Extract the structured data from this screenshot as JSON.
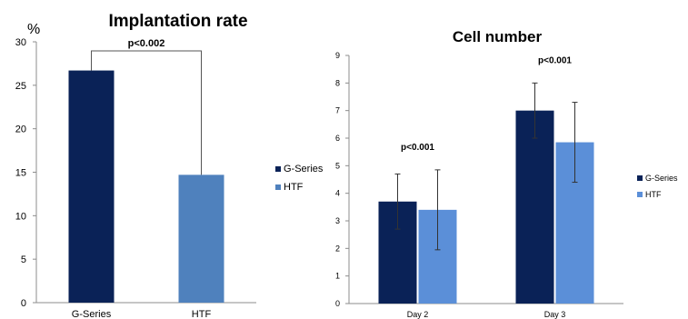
{
  "chart_data": [
    {
      "type": "bar",
      "title": "Implantation rate",
      "ylabel": "%",
      "ylim": [
        0,
        30
      ],
      "yticks": [
        0,
        5,
        10,
        15,
        20,
        25,
        30
      ],
      "categories": [
        "G-Series",
        "HTF"
      ],
      "series": [
        {
          "name": "G-Series",
          "values": [
            26.7,
            null
          ]
        },
        {
          "name": "HTF",
          "values": [
            null,
            14.7
          ]
        }
      ],
      "annotations": [
        {
          "text": "p<0.002",
          "type": "bracket",
          "between": [
            "G-Series",
            "HTF"
          ]
        }
      ],
      "legend_position": "right",
      "grid": false
    },
    {
      "type": "bar",
      "title": "Cell number",
      "ylim": [
        0,
        9
      ],
      "yticks": [
        0,
        1,
        2,
        3,
        4,
        5,
        6,
        7,
        8,
        9
      ],
      "categories": [
        "Day 2",
        "Day 3"
      ],
      "series": [
        {
          "name": "G-Series",
          "values": [
            3.7,
            7.0
          ],
          "error": [
            1.0,
            1.0
          ]
        },
        {
          "name": "HTF",
          "values": [
            3.4,
            5.85
          ],
          "error": [
            1.45,
            1.45
          ]
        }
      ],
      "annotations": [
        {
          "text": "p<0.001",
          "category": "Day 2"
        },
        {
          "text": "p<0.001",
          "category": "Day 3"
        }
      ],
      "legend_position": "right",
      "grid": false
    }
  ],
  "colors": {
    "g_series": "#0a2257",
    "htf_left": "#4f81bd",
    "htf_right": "#5b8fd8",
    "axis": "#8c8c8c",
    "error": "#333333"
  }
}
